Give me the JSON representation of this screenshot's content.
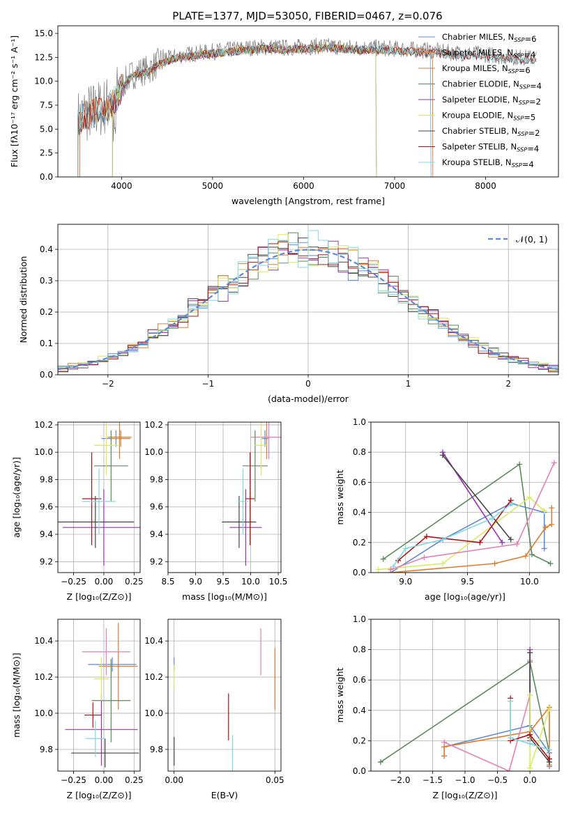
{
  "palette": {
    "Chabrier MILES": "#5b8bd6",
    "Salpeter MILES": "#e07b2a",
    "Kroupa MILES": "#e07b2a",
    "Chabrier ELODIE": "#5a8a5a",
    "Salpeter ELODIE": "#9b2fb5",
    "Kroupa ELODIE": "#d8ec5a",
    "Chabrier STELIB": "#444444",
    "Salpeter STELIB": "#b01010",
    "Kroupa STELIB": "#7fd8e0",
    "pink": "#e57fb4",
    "grid": "#b0b0b0"
  },
  "chart_data": [
    {
      "id": "spectrum",
      "type": "line",
      "title": "PLATE=1377, MJD=53050, FIBERID=0467, z=0.076",
      "xlabel": "wavelength [Angstrom, rest frame]",
      "ylabel": "Flux [fλ10⁻¹⁷ erg cm⁻² s⁻¹ A⁻¹]",
      "xlim": [
        3300,
        8800
      ],
      "ylim": [
        0,
        15.8
      ],
      "xticks": [
        "4000",
        "5000",
        "6000",
        "7000",
        "8000"
      ],
      "yticks": [
        "0.0",
        "2.5",
        "5.0",
        "7.5",
        "10.0",
        "12.5",
        "15.0"
      ],
      "continuum": {
        "x": [
          3520,
          3600,
          3700,
          3800,
          3900,
          4000,
          4100,
          4200,
          4300,
          4400,
          4500,
          4600,
          4800,
          5000,
          5200,
          5400,
          5600,
          5800,
          6000,
          6200,
          6400,
          6600,
          6800,
          7000,
          7200,
          7400,
          7600,
          7800,
          8000,
          8200,
          8400,
          8550
        ],
        "y": [
          6.0,
          6.6,
          6.9,
          7.3,
          7.8,
          9.5,
          10.6,
          11.0,
          11.2,
          11.9,
          12.3,
          12.6,
          12.9,
          13.1,
          13.3,
          13.5,
          13.6,
          13.5,
          13.6,
          13.7,
          13.6,
          13.5,
          13.5,
          13.4,
          13.3,
          13.2,
          13.0,
          12.9,
          12.8,
          12.6,
          12.5,
          12.4
        ]
      },
      "series": [
        {
          "name": "Chabrier MILES, N$_{SSP}$=6"
        },
        {
          "name": "Salpeter MILES, N$_{SSP}$=4"
        },
        {
          "name": "Kroupa MILES, N$_{SSP}$=6"
        },
        {
          "name": "Chabrier ELODIE, N$_{SSP}$=4"
        },
        {
          "name": "Salpeter ELODIE, N$_{SSP}$=2"
        },
        {
          "name": "Kroupa ELODIE, N$_{SSP}$=5"
        },
        {
          "name": "Chabrier STELIB, N$_{SSP}$=2"
        },
        {
          "name": "Salpeter STELIB, N$_{SSP}$=4"
        },
        {
          "name": "Kroupa STELIB, N$_{SSP}$=4"
        }
      ]
    },
    {
      "id": "residuals",
      "type": "bar",
      "xlabel": "(data-model)/error",
      "ylabel": "Normed distribution",
      "xlim": [
        -2.5,
        2.5
      ],
      "ylim": [
        0,
        0.48
      ],
      "xticks": [
        "−2",
        "−1",
        "0",
        "1",
        "2"
      ],
      "yticks": [
        "0.0",
        "0.1",
        "0.2",
        "0.3",
        "0.4"
      ],
      "gaussian_label": "𝒩(0, 1)",
      "bins": 50
    },
    {
      "id": "age-vs-Z",
      "type": "scatter",
      "xlabel": "Z [log₁₀(Z/Z⊙)]",
      "ylabel": "age  [log₁₀(age/yr)]",
      "xlim": [
        -0.38,
        0.3
      ],
      "ylim": [
        9.12,
        10.22
      ],
      "xticks": [
        "−0.25",
        "0.00",
        "0.25"
      ],
      "yticks": [
        "9.2",
        "9.4",
        "9.6",
        "9.8",
        "10.0",
        "10.2"
      ],
      "points": [
        {
          "c": "Chabrier MILES",
          "x": 0.1,
          "y": 10.1,
          "xerr": 0.12,
          "yerr": 0.06
        },
        {
          "c": "Salpeter MILES",
          "x": 0.13,
          "y": 10.11,
          "xerr": 0.1,
          "yerr": 0.16
        },
        {
          "c": "Kroupa MILES",
          "x": 0.14,
          "y": 10.1,
          "xerr": 0.08,
          "yerr": 0.06
        },
        {
          "c": "Chabrier ELODIE",
          "x": 0.06,
          "y": 9.9,
          "xerr": 0.14,
          "yerr": 0.26
        },
        {
          "c": "Salpeter ELODIE",
          "x": 0.0,
          "y": 9.45,
          "xerr": 0.34,
          "yerr": 0.28
        },
        {
          "c": "Kroupa ELODIE",
          "x": 0.02,
          "y": 10.05,
          "xerr": 0.1,
          "yerr": 0.22
        },
        {
          "c": "Chabrier STELIB",
          "x": -0.07,
          "y": 9.49,
          "xerr": 0.32,
          "yerr": 0.19
        },
        {
          "c": "Salpeter STELIB",
          "x": -0.1,
          "y": 9.66,
          "xerr": 0.08,
          "yerr": 0.34
        },
        {
          "c": "Kroupa STELIB",
          "x": -0.04,
          "y": 9.64,
          "xerr": 0.14,
          "yerr": 0.24
        }
      ]
    },
    {
      "id": "age-vs-mass",
      "type": "scatter",
      "xlabel": "mass [log₁₀(M/M⊙)]",
      "xlim": [
        8.5,
        10.55
      ],
      "ylim": [
        9.12,
        10.22
      ],
      "xticks": [
        "8.5",
        "9.0",
        "9.5",
        "10.0",
        "10.5"
      ],
      "yticks": [
        "9.2",
        "9.4",
        "9.6",
        "9.8",
        "10.0",
        "10.2"
      ],
      "points": [
        {
          "c": "Chabrier MILES",
          "x": 10.26,
          "y": 10.1,
          "xerr": 0.06,
          "yerr": 0.06
        },
        {
          "c": "Salpeter MILES",
          "x": 10.29,
          "y": 10.11,
          "xerr": 0.06,
          "yerr": 0.16
        },
        {
          "c": "pink",
          "x": 10.33,
          "y": 10.11,
          "xerr": 0.33,
          "yerr": 0.16
        },
        {
          "c": "Chabrier ELODIE",
          "x": 10.08,
          "y": 9.9,
          "xerr": 0.23,
          "yerr": 0.26
        },
        {
          "c": "Salpeter ELODIE",
          "x": 9.91,
          "y": 9.45,
          "xerr": 0.29,
          "yerr": 0.28
        },
        {
          "c": "Kroupa ELODIE",
          "x": 10.19,
          "y": 10.05,
          "xerr": 0.12,
          "yerr": 0.22
        },
        {
          "c": "Chabrier STELIB",
          "x": 9.79,
          "y": 9.49,
          "xerr": 0.31,
          "yerr": 0.19
        },
        {
          "c": "Salpeter STELIB",
          "x": 9.99,
          "y": 9.66,
          "xerr": 0.08,
          "yerr": 0.34
        },
        {
          "c": "Kroupa STELIB",
          "x": 9.86,
          "y": 9.64,
          "xerr": 0.1,
          "yerr": 0.24
        }
      ]
    },
    {
      "id": "weight-vs-age",
      "type": "line",
      "xlabel": "age  [log₁₀(age/yr)]",
      "ylabel": "mass weight",
      "xlim": [
        8.72,
        10.24
      ],
      "ylim": [
        0,
        1
      ],
      "xticks": [
        "9.0",
        "9.5",
        "10.0"
      ],
      "yticks": [
        "0.0",
        "0.2",
        "0.4",
        "0.6",
        "0.8",
        "1.0"
      ],
      "series": [
        {
          "c": "Chabrier MILES",
          "x": [
            8.88,
            9.3,
            9.85,
            10.12,
            10.12
          ],
          "y": [
            0.0,
            0.22,
            0.46,
            0.4,
            0.16
          ]
        },
        {
          "c": "Salpeter MILES",
          "x": [
            8.88,
            9.72,
            9.97,
            10.13,
            10.18,
            10.18
          ],
          "y": [
            0.0,
            0.06,
            0.11,
            0.3,
            0.32,
            0.43
          ]
        },
        {
          "c": "Chabrier ELODIE",
          "x": [
            8.82,
            9.92,
            10.02,
            10.17
          ],
          "y": [
            0.09,
            0.72,
            0.12,
            0.06
          ]
        },
        {
          "c": "Salpeter ELODIE",
          "x": [
            9.3,
            9.78
          ],
          "y": [
            0.8,
            0.2
          ]
        },
        {
          "c": "Kroupa ELODIE",
          "x": [
            8.78,
            9.3,
            10.0,
            10.12
          ],
          "y": [
            0.02,
            0.06,
            0.5,
            0.41
          ]
        },
        {
          "c": "Chabrier STELIB",
          "x": [
            9.3,
            9.85
          ],
          "y": [
            0.78,
            0.22
          ]
        },
        {
          "c": "Salpeter STELIB",
          "x": [
            8.94,
            9.17,
            9.6,
            9.85
          ],
          "y": [
            0.08,
            0.24,
            0.2,
            0.48
          ]
        },
        {
          "c": "Kroupa STELIB",
          "x": [
            8.9,
            9.0,
            9.3,
            9.7,
            9.86
          ],
          "y": [
            0.04,
            0.16,
            0.22,
            0.36,
            0.46
          ]
        },
        {
          "c": "pink",
          "x": [
            8.88,
            9.15,
            9.9,
            10.2
          ],
          "y": [
            0.02,
            0.1,
            0.19,
            0.73
          ]
        }
      ]
    },
    {
      "id": "mass-vs-Z",
      "type": "scatter",
      "xlabel": "Z [log₁₀(Z/Z⊙)]",
      "ylabel": "mass [log₁₀(M/M⊙)]",
      "xlim": [
        -0.38,
        0.3
      ],
      "ylim": [
        9.68,
        10.52
      ],
      "xticks": [
        "−0.25",
        "0.00",
        "0.25"
      ],
      "yticks": [
        "9.8",
        "10.0",
        "10.2",
        "10.4"
      ],
      "points": [
        {
          "c": "Chabrier MILES",
          "x": 0.07,
          "y": 10.27,
          "xerr": 0.2,
          "yerr": 0.04
        },
        {
          "c": "Salpeter MILES",
          "x": 0.12,
          "y": 10.26,
          "xerr": 0.16,
          "yerr": 0.24
        },
        {
          "c": "pink",
          "x": 0.02,
          "y": 10.34,
          "xerr": 0.2,
          "yerr": 0.13
        },
        {
          "c": "Chabrier ELODIE",
          "x": 0.06,
          "y": 10.07,
          "xerr": 0.16,
          "yerr": 0.23
        },
        {
          "c": "Salpeter ELODIE",
          "x": -0.02,
          "y": 9.91,
          "xerr": 0.3,
          "yerr": 0.2
        },
        {
          "c": "Kroupa ELODIE",
          "x": -0.02,
          "y": 10.19,
          "xerr": 0.06,
          "yerr": 0.12
        },
        {
          "c": "Chabrier STELIB",
          "x": 0.01,
          "y": 9.78,
          "xerr": 0.28,
          "yerr": 0.08
        },
        {
          "c": "Salpeter STELIB",
          "x": -0.09,
          "y": 9.99,
          "xerr": 0.07,
          "yerr": 0.07
        },
        {
          "c": "Kroupa STELIB",
          "x": -0.07,
          "y": 9.86,
          "xerr": 0.08,
          "yerr": 0.1
        }
      ]
    },
    {
      "id": "mass-vs-ebv",
      "type": "scatter",
      "xlabel": "E(B-V)",
      "xlim": [
        -0.003,
        0.053
      ],
      "ylim": [
        9.68,
        10.52
      ],
      "xticks": [
        "0.00",
        "0.05"
      ],
      "yticks": [
        "9.8",
        "10.0",
        "10.2",
        "10.4"
      ],
      "points": [
        {
          "c": "Chabrier STELIB",
          "x": 0.0,
          "y": 9.79,
          "xerr": 0.0,
          "yerr": 0.08
        },
        {
          "c": "Chabrier MILES",
          "x": 0.0,
          "y": 10.27,
          "xerr": 0.0,
          "yerr": 0.04
        },
        {
          "c": "Kroupa ELODIE",
          "x": 0.0,
          "y": 10.2,
          "xerr": 0.0,
          "yerr": 0.07
        },
        {
          "c": "Salpeter STELIB",
          "x": 0.027,
          "y": 9.98,
          "xerr": 0.0,
          "yerr": 0.13
        },
        {
          "c": "Kroupa STELIB",
          "x": 0.029,
          "y": 9.77,
          "xerr": 0.0,
          "yerr": 0.11
        },
        {
          "c": "pink",
          "x": 0.043,
          "y": 10.34,
          "xerr": 0.0,
          "yerr": 0.13
        },
        {
          "c": "Salpeter MILES",
          "x": 0.05,
          "y": 10.19,
          "xerr": 0.0,
          "yerr": 0.17
        }
      ]
    },
    {
      "id": "weight-vs-Z",
      "type": "line",
      "xlabel": "Z [log₁₀(Z/Z⊙)]",
      "ylabel": "mass weight",
      "xlim": [
        -2.45,
        0.45
      ],
      "ylim": [
        0,
        1
      ],
      "xticks": [
        "−2.0",
        "−1.5",
        "−1.0",
        "−0.5",
        "0.0"
      ],
      "yticks": [
        "0.0",
        "0.2",
        "0.4",
        "0.6",
        "0.8",
        "1.0"
      ],
      "series": [
        {
          "c": "Chabrier ELODIE",
          "x": [
            -2.3,
            0.0,
            0.3
          ],
          "y": [
            0.06,
            0.72,
            0.12
          ]
        },
        {
          "c": "Chabrier MILES",
          "x": [
            -1.32,
            -1.32,
            0.0,
            0.3,
            0.3
          ],
          "y": [
            0.1,
            0.16,
            0.3,
            0.12,
            0.03
          ]
        },
        {
          "c": "Salpeter MILES",
          "x": [
            -1.32,
            -1.32,
            0.0,
            0.3,
            0.3
          ],
          "y": [
            0.1,
            0.16,
            0.26,
            0.42,
            0.04
          ]
        },
        {
          "c": "pink",
          "x": [
            -1.32,
            -0.32,
            0.0,
            0.0
          ],
          "y": [
            0.19,
            0.0,
            0.5,
            0.73
          ]
        },
        {
          "c": "Salpeter ELODIE",
          "x": [
            0.0,
            0.0
          ],
          "y": [
            0.8,
            0.2
          ]
        },
        {
          "c": "Chabrier STELIB",
          "x": [
            0.0,
            0.0,
            0.3
          ],
          "y": [
            0.78,
            0.22,
            0.06
          ]
        },
        {
          "c": "Kroupa ELODIE",
          "x": [
            0.0,
            0.0,
            0.3
          ],
          "y": [
            0.5,
            0.02,
            0.41
          ]
        },
        {
          "c": "Salpeter STELIB",
          "x": [
            -0.3,
            -0.3,
            0.0,
            0.3
          ],
          "y": [
            0.48,
            0.2,
            0.24,
            0.08
          ]
        },
        {
          "c": "Kroupa STELIB",
          "x": [
            -0.3,
            -0.3,
            0.0,
            0.3
          ],
          "y": [
            0.46,
            0.22,
            0.18,
            0.14
          ]
        }
      ]
    }
  ]
}
